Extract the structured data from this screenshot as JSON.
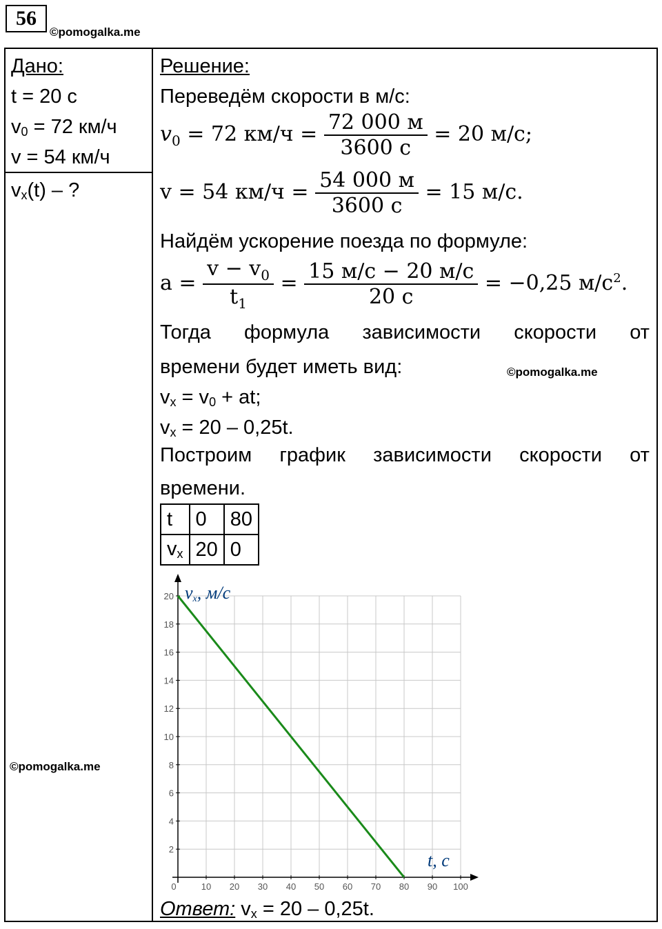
{
  "header": {
    "problem_number": "56",
    "watermark": "©pomogalka.me"
  },
  "given": {
    "title": "Дано:",
    "t": "t = 20 с",
    "v0_pre": "v",
    "v0_sub": "0",
    "v0_post": " = 72 км/ч",
    "v": "v = 54 км/ч",
    "find_pre": "v",
    "find_sub": "x",
    "find_post": "(t) – ?"
  },
  "solution": {
    "title": "Решение:",
    "line1": "Переведём скорости в м/с:",
    "eq1": {
      "lhs": "v",
      "lhs_sub": "0",
      "mid": " = 72 км/ч = ",
      "num": "72 000 м",
      "den": "3600 с",
      "rhs": " = 20 м/с;"
    },
    "eq2": {
      "lhs": "v = 54 км/ч = ",
      "num": "54 000 м",
      "den": "3600 с",
      "rhs": " = 15 м/с."
    },
    "line2": "Найдём ускорение поезда по формуле:",
    "eq3": {
      "lhs": "a = ",
      "num1": "v − v",
      "num1_sub": "0",
      "den1": "t",
      "den1_sub": "1",
      "num2": "15 м/с − 20 м/с",
      "den2": "20 с",
      "rhs": " = −0,25 м/с",
      "rhs_sup": "2",
      "rhs_end": "."
    },
    "line3_words": [
      "Тогда",
      "формула",
      "зависимости",
      "скорости",
      "от"
    ],
    "line4": "времени будет иметь вид:",
    "formula1_pre": "v",
    "formula1_sub": "x",
    "formula1_mid": " = v",
    "formula1_sub2": "0",
    "formula1_post": " + at;",
    "formula2_pre": "v",
    "formula2_sub": "x",
    "formula2_post": " = 20 – 0,25t.",
    "line5_words": [
      "Построим",
      "график",
      "зависимости",
      "скорости",
      "от"
    ],
    "line6": "времени.",
    "table": {
      "row1": [
        "t",
        "0",
        "80"
      ],
      "row2_label": "v",
      "row2_label_sub": "x",
      "row2": [
        "20",
        "0"
      ]
    },
    "answer_label": "Ответ:",
    "answer_pre": " v",
    "answer_sub": "x",
    "answer_post": " = 20 – 0,25t."
  },
  "chart_data": {
    "type": "line",
    "xlabel": "t, с",
    "ylabel": "v",
    "ylabel_sub": "x",
    "ylabel_unit": ", м/с",
    "xlim": [
      0,
      100
    ],
    "ylim": [
      0,
      20
    ],
    "x_ticks": [
      0,
      10,
      20,
      30,
      40,
      50,
      60,
      70,
      80,
      90,
      100
    ],
    "y_ticks": [
      2,
      4,
      6,
      8,
      10,
      12,
      14,
      16,
      18,
      20
    ],
    "grid": true,
    "series": [
      {
        "x": [
          0,
          80
        ],
        "y": [
          20,
          0
        ],
        "color": "#1a8a1a"
      }
    ]
  }
}
